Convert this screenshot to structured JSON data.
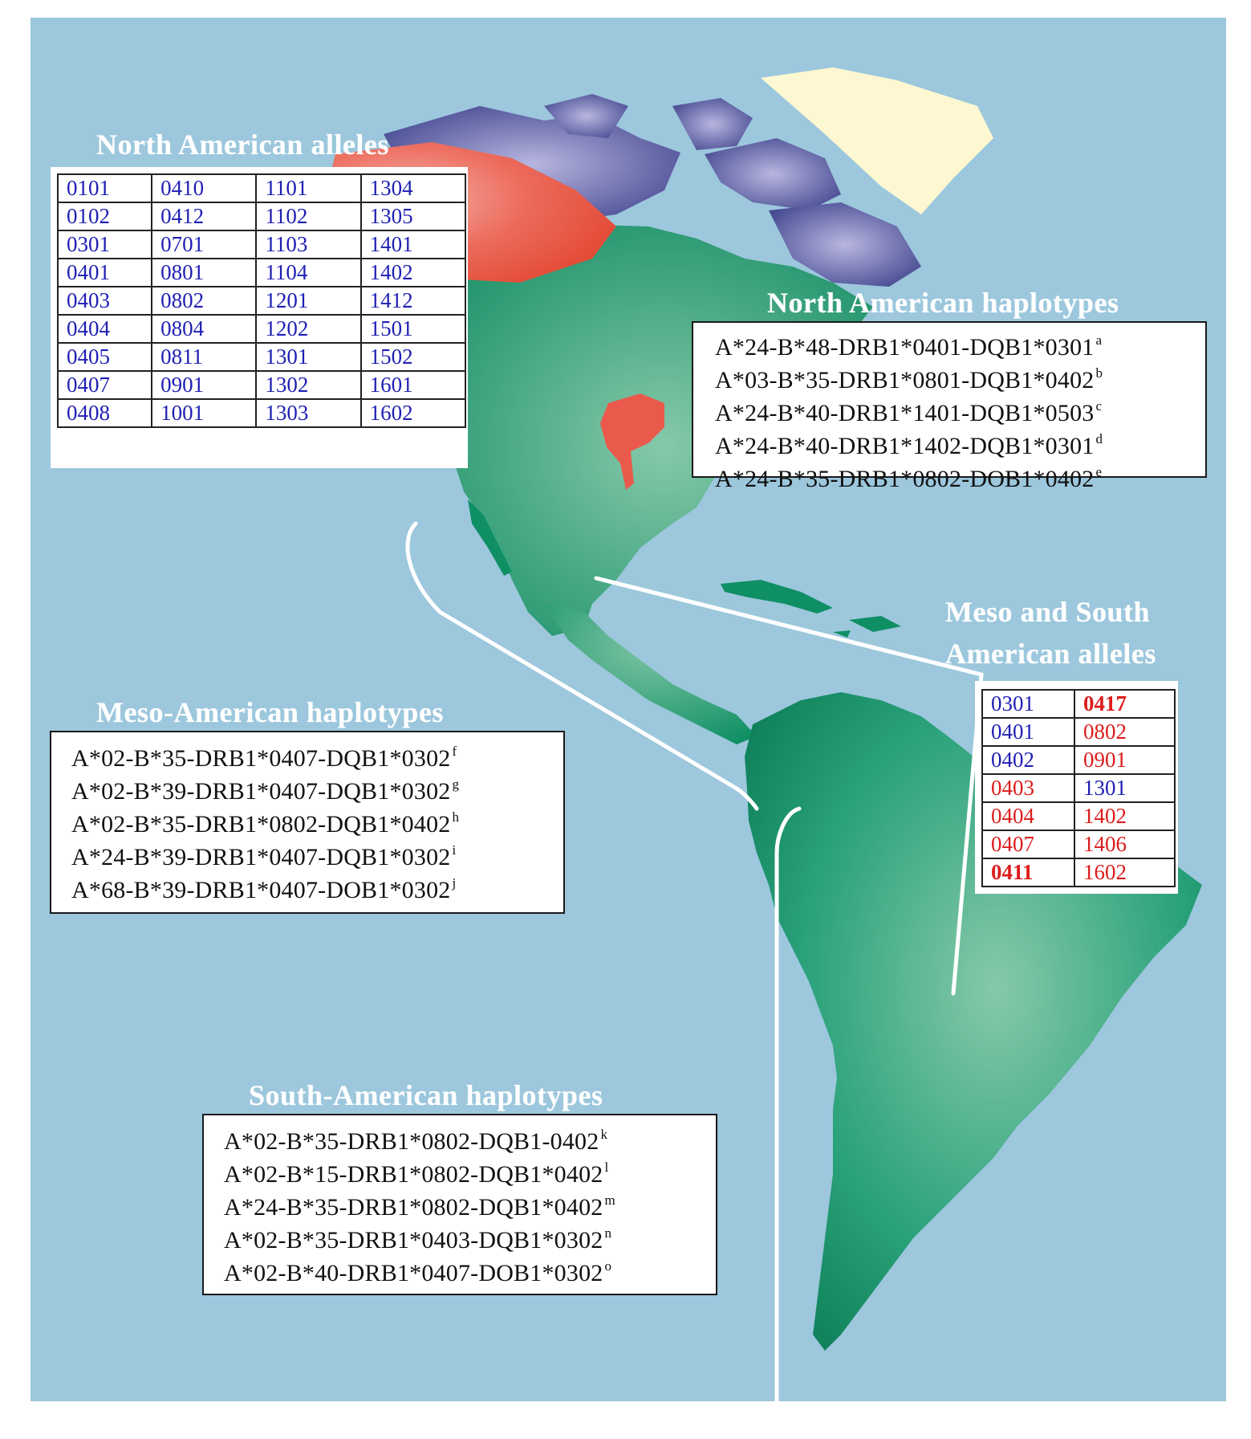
{
  "colors": {
    "ocean": "#9cc7dd",
    "land_green": "#0f8f64",
    "land_green_light": "#86c9aa",
    "arctic_purple": "#4a4d94",
    "red_region": "#e34a3c",
    "ice_yellow": "#fdf8d2",
    "allele_blue": "#1f1fb4",
    "allele_red": "#dd1c1c"
  },
  "north_alleles": {
    "title": "North American alleles",
    "rows": [
      [
        "0101",
        "0410",
        "1101",
        "1304"
      ],
      [
        "0102",
        "0412",
        "1102",
        "1305"
      ],
      [
        "0301",
        "0701",
        "1103",
        "1401"
      ],
      [
        "0401",
        "0801",
        "1104",
        "1402"
      ],
      [
        "0403",
        "0802",
        "1201",
        "1412"
      ],
      [
        "0404",
        "0804",
        "1202",
        "1501"
      ],
      [
        "0405",
        "0811",
        "1301",
        "1502"
      ],
      [
        "0407",
        "0901",
        "1302",
        "1601"
      ],
      [
        "0408",
        "1001",
        "1303",
        "1602"
      ]
    ]
  },
  "north_haplotypes": {
    "title": "North American haplotypes",
    "items": [
      {
        "text": "A*24-B*48-DRB1*0401-DQB1*0301",
        "sup": "a"
      },
      {
        "text": "A*03-B*35-DRB1*0801-DQB1*0402",
        "sup": "b"
      },
      {
        "text": "A*24-B*40-DRB1*1401-DQB1*0503",
        "sup": "c"
      },
      {
        "text": "A*24-B*40-DRB1*1402-DQB1*0301",
        "sup": "d"
      },
      {
        "text": "A*24-B*35-DRB1*0802-DOB1*0402",
        "sup": "e"
      }
    ]
  },
  "meso_south_alleles": {
    "title_line1": "Meso and South",
    "title_line2": "American alleles",
    "rows": [
      [
        {
          "text": "0301",
          "color": "blue",
          "bold": false
        },
        {
          "text": "0417",
          "color": "red",
          "bold": true
        }
      ],
      [
        {
          "text": "0401",
          "color": "blue",
          "bold": false
        },
        {
          "text": "0802",
          "color": "red",
          "bold": false
        }
      ],
      [
        {
          "text": "0402",
          "color": "blue",
          "bold": false
        },
        {
          "text": "0901",
          "color": "red",
          "bold": false
        }
      ],
      [
        {
          "text": "0403",
          "color": "red",
          "bold": false
        },
        {
          "text": "1301",
          "color": "blue",
          "bold": false
        }
      ],
      [
        {
          "text": "0404",
          "color": "red",
          "bold": false
        },
        {
          "text": "1402",
          "color": "red",
          "bold": false
        }
      ],
      [
        {
          "text": "0407",
          "color": "red",
          "bold": false
        },
        {
          "text": "1406",
          "color": "red",
          "bold": false
        }
      ],
      [
        {
          "text": "0411",
          "color": "red",
          "bold": true
        },
        {
          "text": "1602",
          "color": "red",
          "bold": false
        }
      ]
    ]
  },
  "meso_haplotypes": {
    "title": "Meso-American haplotypes",
    "items": [
      {
        "text": "A*02-B*35-DRB1*0407-DQB1*0302",
        "sup": "f"
      },
      {
        "text": "A*02-B*39-DRB1*0407-DQB1*0302",
        "sup": "g"
      },
      {
        "text": "A*02-B*35-DRB1*0802-DQB1*0402",
        "sup": "h"
      },
      {
        "text": "A*24-B*39-DRB1*0407-DQB1*0302",
        "sup": "i"
      },
      {
        "text": "A*68-B*39-DRB1*0407-DOB1*0302",
        "sup": "j"
      }
    ]
  },
  "south_haplotypes": {
    "title": "South-American haplotypes",
    "items": [
      {
        "text": "A*02-B*35-DRB1*0802-DQB1-0402",
        "sup": "k"
      },
      {
        "text": "A*02-B*15-DRB1*0802-DQB1*0402",
        "sup": "l"
      },
      {
        "text": "A*24-B*35-DRB1*0802-DQB1*0402",
        "sup": "m"
      },
      {
        "text": "A*02-B*35-DRB1*0403-DQB1*0302",
        "sup": "n"
      },
      {
        "text": "A*02-B*40-DRB1*0407-DOB1*0302",
        "sup": "o"
      }
    ]
  }
}
